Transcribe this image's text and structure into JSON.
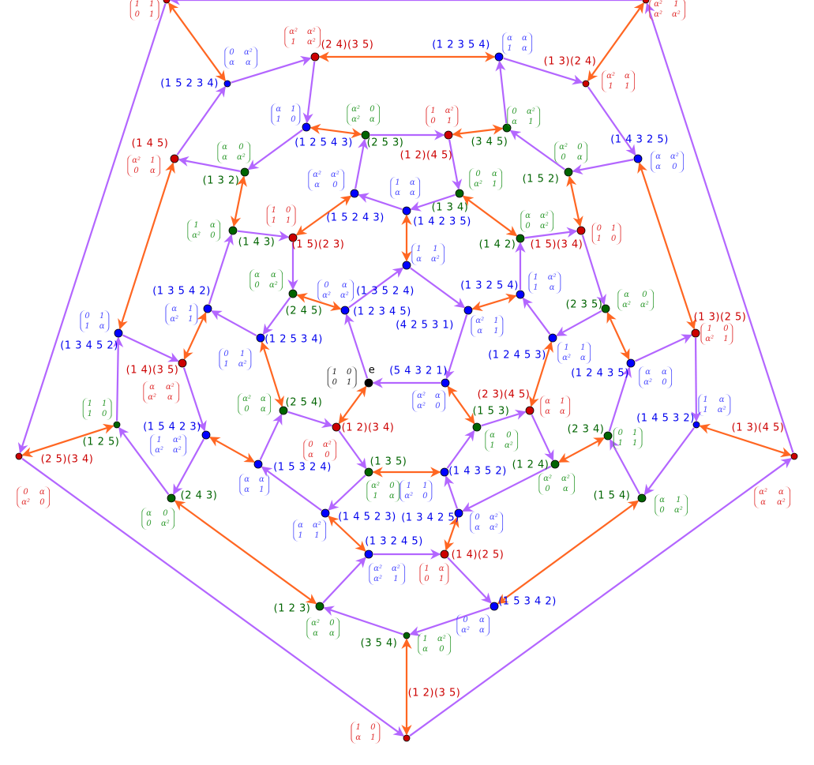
{
  "colors": {
    "order5": "#0000ff",
    "order3": "#006400",
    "order2": "#cc0000",
    "identity": "#000000",
    "generator_a_edge": "#b366ff",
    "generator_b_edge": "#ff6622"
  },
  "nodes": [
    {
      "label": "",
      "kind": "red",
      "matrix": [
        "1",
        "1",
        "0",
        "1"
      ]
    },
    {
      "label": "",
      "kind": "red",
      "matrix": [
        "α²",
        "1",
        "α²",
        "α²"
      ]
    },
    {
      "label": "(2 5)(3 4)",
      "kind": "red",
      "matrix": [
        "0",
        "α",
        "α²",
        "0"
      ]
    },
    {
      "label": "(1 3)(4 5)",
      "kind": "red",
      "matrix": [
        "α²",
        "α",
        "α",
        "α²"
      ]
    },
    {
      "label": "(1 2)(3 5)",
      "kind": "red",
      "matrix": [
        "1",
        "0",
        "α",
        "1"
      ]
    },
    {
      "label": "(1 5 2 3 4)",
      "kind": "blue",
      "matrix": [
        "0",
        "α²",
        "α",
        "α"
      ]
    },
    {
      "label": "(2 4)(3 5)",
      "kind": "red",
      "matrix": [
        "α²",
        "α²",
        "1",
        "α²"
      ]
    },
    {
      "label": "(1 2 5 4 3)",
      "kind": "blue",
      "matrix": [
        "α",
        "1",
        "1",
        "0"
      ]
    },
    {
      "label": "(1 3 2)",
      "kind": "green",
      "matrix": [
        "α",
        "0",
        "α",
        "α²"
      ]
    },
    {
      "label": "(1 4 5)",
      "kind": "red",
      "matrix": [
        "α²",
        "1",
        "0",
        "α"
      ]
    },
    {
      "label": "(1 2 3 5 4)",
      "kind": "blue",
      "matrix": [
        "α",
        "α",
        "1",
        "α"
      ]
    },
    {
      "label": "(1 3)(2 4)",
      "kind": "red",
      "matrix": [
        "α²",
        "α",
        "1",
        "1"
      ]
    },
    {
      "label": "(1 4 3 2 5)",
      "kind": "blue",
      "matrix": [
        "α",
        "α²",
        "α",
        "0"
      ]
    },
    {
      "label": "(1 5 2)",
      "kind": "green",
      "matrix": [
        "α²",
        "0",
        "0",
        "α"
      ]
    },
    {
      "label": "(3 4 5)",
      "kind": "green",
      "matrix": [
        "0",
        "α²",
        "α",
        "1"
      ]
    },
    {
      "label": "(2 5 3)",
      "kind": "green",
      "matrix": [
        "α²",
        "0",
        "α²",
        "α"
      ]
    },
    {
      "label": "(1 2)(4 5)",
      "kind": "red",
      "matrix": [
        "1",
        "α²",
        "0",
        "1"
      ]
    },
    {
      "label": "(1 3 4)",
      "kind": "green",
      "matrix": [
        "0",
        "α",
        "α²",
        "1"
      ]
    },
    {
      "label": "(1 4 2 3 5)",
      "kind": "blue",
      "matrix": [
        "1",
        "α",
        "α",
        "α"
      ]
    },
    {
      "label": "(1 5 2 4 3)",
      "kind": "blue",
      "matrix": [
        "α²",
        "α²",
        "α",
        "0"
      ]
    },
    {
      "label": "e",
      "kind": "black",
      "matrix": [
        "1",
        "0",
        "0",
        "1"
      ]
    },
    {
      "label": "(1 2 3 4 5)",
      "kind": "blue",
      "matrix": [
        "0",
        "α",
        "α²",
        "α²"
      ]
    },
    {
      "label": "(1 3 5 2 4)",
      "kind": "blue",
      "matrix": [
        "1",
        "1",
        "α",
        "α²"
      ]
    },
    {
      "label": "(4 2 5 3 1)",
      "kind": "blue",
      "matrix": [
        "α²",
        "1",
        "α",
        "1"
      ]
    },
    {
      "label": "(5 4 3 2 1)",
      "kind": "blue",
      "matrix": [
        "α²",
        "α",
        "α²",
        "0"
      ]
    },
    {
      "label": "(1 4 3)",
      "kind": "green",
      "matrix": [
        "1",
        "α",
        "α²",
        "0"
      ]
    },
    {
      "label": "(1 5)(2 3)",
      "kind": "red",
      "matrix": [
        "1",
        "0",
        "1",
        "1"
      ]
    },
    {
      "label": "(2 4 5)",
      "kind": "green",
      "matrix": [
        "α",
        "α",
        "0",
        "α²"
      ]
    },
    {
      "label": "(1 2 5 3 4)",
      "kind": "blue",
      "matrix": [
        "0",
        "1",
        "1",
        "α²"
      ]
    },
    {
      "label": "(1 3 5 4 2)",
      "kind": "blue",
      "matrix": [
        "α",
        "1",
        "α²",
        "1"
      ]
    },
    {
      "label": "(1 4 2)",
      "kind": "green",
      "matrix": [
        "α",
        "α²",
        "0",
        "α²"
      ]
    },
    {
      "label": "(1 5)(3 4)",
      "kind": "red",
      "matrix": [
        "0",
        "1",
        "1",
        "0"
      ]
    },
    {
      "label": "(2 3 5)",
      "kind": "green",
      "matrix": [
        "α",
        "0",
        "α²",
        "α²"
      ]
    },
    {
      "label": "(1 2 4 5 3)",
      "kind": "blue",
      "matrix": [
        "1",
        "1",
        "α²",
        "α"
      ]
    },
    {
      "label": "(1 3 2 5 4)",
      "kind": "blue",
      "matrix": [
        "1",
        "α²",
        "1",
        "α"
      ]
    },
    {
      "label": "(1 5 4 2 3)",
      "kind": "blue",
      "matrix": [
        "1",
        "α²",
        "α²",
        "α²"
      ]
    },
    {
      "label": "(2 4 3)",
      "kind": "green",
      "matrix": [
        "α",
        "0",
        "0",
        "α²"
      ]
    },
    {
      "label": "(1 2 5)",
      "kind": "green",
      "matrix": [
        "1",
        "1",
        "1",
        "0"
      ]
    },
    {
      "label": "(1 3 4 5 2)",
      "kind": "blue",
      "matrix": [
        "0",
        "1",
        "1",
        "α"
      ]
    },
    {
      "label": "(1 4)(3 5)",
      "kind": "red",
      "matrix": [
        "α",
        "α²",
        "α²",
        "α"
      ]
    },
    {
      "label": "(1 2 4 3 5)",
      "kind": "blue",
      "matrix": [
        "α",
        "α",
        "α²",
        "0"
      ]
    },
    {
      "label": "(1 3)(2 5)",
      "kind": "red",
      "matrix": [
        "1",
        "0",
        "α²",
        "1"
      ]
    },
    {
      "label": "(1 4 5 3 2)",
      "kind": "blue",
      "matrix": [
        "1",
        "α",
        "1",
        "α²"
      ]
    },
    {
      "label": "(1 5 4)",
      "kind": "green",
      "matrix": [
        "α",
        "1",
        "0",
        "α²"
      ]
    },
    {
      "label": "(2 3 4)",
      "kind": "green",
      "matrix": [
        "0",
        "1",
        "1",
        "1"
      ]
    },
    {
      "label": "(2 5 4)",
      "kind": "green",
      "matrix": [
        "α²",
        "α",
        "0",
        "α"
      ]
    },
    {
      "label": "(1 2)(3 4)",
      "kind": "red",
      "matrix": [
        "0",
        "α²",
        "α",
        "0"
      ]
    },
    {
      "label": "(1 3 5)",
      "kind": "green",
      "matrix": [
        "α²",
        "0",
        "1",
        "α"
      ]
    },
    {
      "label": "(1 4 5 2 3)",
      "kind": "blue",
      "matrix": [
        "α",
        "α²",
        "1",
        "1"
      ]
    },
    {
      "label": "(1 5 3 2 4)",
      "kind": "blue",
      "matrix": [
        "α",
        "α",
        "α",
        "1"
      ]
    },
    {
      "label": "(1 5 3)",
      "kind": "green",
      "matrix": [
        "α",
        "0",
        "1",
        "α²"
      ]
    },
    {
      "label": "(2 3)(4 5)",
      "kind": "red",
      "matrix": [
        "α",
        "1",
        "α",
        "α"
      ]
    },
    {
      "label": "(1 2 4)",
      "kind": "green",
      "matrix": [
        "α²",
        "α²",
        "0",
        "α"
      ]
    },
    {
      "label": "(1 3 4 2 5)",
      "kind": "blue",
      "matrix": [
        "0",
        "α²",
        "α",
        "α²"
      ]
    },
    {
      "label": "(1 4 3 5 2)",
      "kind": "blue",
      "matrix": [
        "1",
        "1",
        "α²",
        "0"
      ]
    },
    {
      "label": "(1 3 2 4 5)",
      "kind": "blue",
      "matrix": [
        "α²",
        "α²",
        "α²",
        "1"
      ]
    },
    {
      "label": "(1 4)(2 5)",
      "kind": "red",
      "matrix": [
        "1",
        "α",
        "0",
        "1"
      ]
    },
    {
      "label": "(1 5 3 4 2)",
      "kind": "blue",
      "matrix": [
        "0",
        "α",
        "α²",
        "α"
      ]
    },
    {
      "label": "(3 5 4)",
      "kind": "green",
      "matrix": [
        "1",
        "α²",
        "α",
        "0"
      ]
    },
    {
      "label": "(1 2 3)",
      "kind": "green",
      "matrix": [
        "α²",
        "0",
        "α",
        "α"
      ]
    }
  ],
  "directed_cycles": [
    [
      0,
      2,
      4,
      3,
      1
    ],
    [
      5,
      6,
      7,
      8,
      9
    ],
    [
      10,
      11,
      12,
      13,
      14
    ],
    [
      15,
      16,
      17,
      18,
      19
    ],
    [
      20,
      21,
      22,
      23,
      24
    ],
    [
      25,
      26,
      27,
      28,
      29
    ],
    [
      30,
      31,
      32,
      33,
      34
    ],
    [
      35,
      36,
      37,
      38,
      39
    ],
    [
      40,
      41,
      42,
      43,
      44
    ],
    [
      45,
      46,
      47,
      48,
      49
    ],
    [
      50,
      51,
      52,
      53,
      54
    ],
    [
      55,
      56,
      57,
      58,
      59
    ]
  ],
  "involution_edges": [
    [
      0,
      5
    ],
    [
      1,
      11
    ],
    [
      2,
      37
    ],
    [
      3,
      42
    ],
    [
      4,
      58
    ],
    [
      6,
      10
    ],
    [
      7,
      15
    ],
    [
      14,
      16
    ],
    [
      8,
      25
    ],
    [
      9,
      38
    ],
    [
      12,
      41
    ],
    [
      13,
      31
    ],
    [
      17,
      30
    ],
    [
      18,
      22
    ],
    [
      19,
      26
    ],
    [
      27,
      21
    ],
    [
      34,
      23
    ],
    [
      32,
      40
    ],
    [
      33,
      51
    ],
    [
      29,
      39
    ],
    [
      28,
      45
    ],
    [
      20,
      46
    ],
    [
      24,
      50
    ],
    [
      35,
      49
    ],
    [
      44,
      52
    ],
    [
      36,
      59
    ],
    [
      43,
      57
    ],
    [
      47,
      54
    ],
    [
      48,
      55
    ],
    [
      53,
      56
    ]
  ]
}
